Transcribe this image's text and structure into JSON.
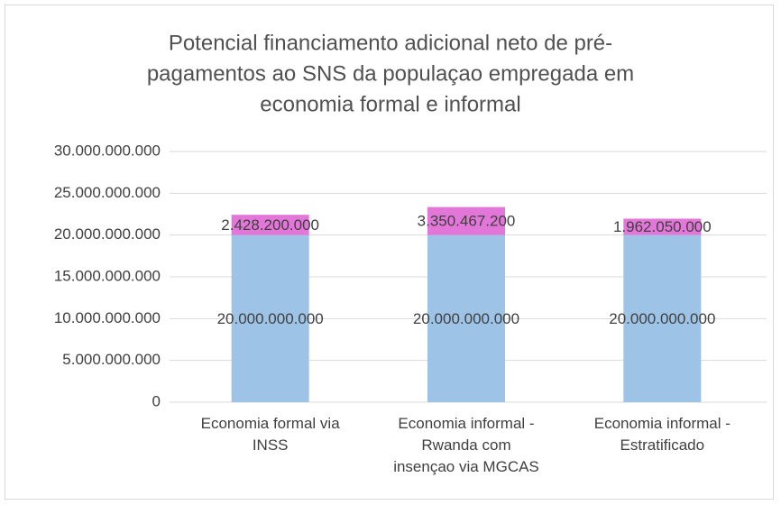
{
  "chart_data": {
    "type": "stacked_bar",
    "title": [
      "Potencial financiamento adicional neto de pré-",
      "pagamentos ao SNS da populaçao empregada em",
      "economia formal e informal"
    ],
    "categories": [
      "Economia formal via INSS",
      "Economia informal - Rwanda com insençao via MGCAS",
      "Economia informal - Estratificado"
    ],
    "series": [
      {
        "color": "#9dc3e6",
        "values": [
          20000000000,
          20000000000,
          20000000000
        ],
        "value_labels": [
          "20.000.000.000",
          "20.000.000.000",
          "20.000.000.000"
        ]
      },
      {
        "color": "#e377d9",
        "values": [
          2428200000,
          3350467200,
          1962050000
        ],
        "value_labels": [
          "2.428.200.000",
          "3.350.467.200",
          "1.962.050.000"
        ]
      }
    ],
    "ylim": [
      0,
      30000000000
    ],
    "yticks": [
      0,
      {
        "value": 5000000000,
        "label": "5.000.000.000"
      },
      {
        "value": 10000000000,
        "label": "10.000.000.000"
      },
      {
        "value": 15000000000,
        "label": "15.000.000.000"
      },
      {
        "value": 20000000000,
        "label": "20.000.000.000"
      },
      {
        "value": 25000000000,
        "label": "25.000.000.000"
      },
      {
        "value": 30000000000,
        "label": "30.000.000.000"
      }
    ],
    "grid": true
  }
}
